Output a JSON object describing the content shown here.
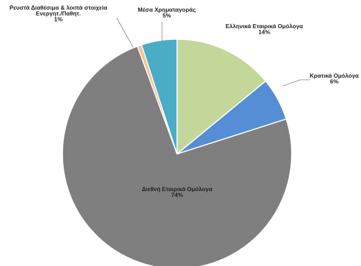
{
  "chart_data": {
    "type": "pie",
    "title": "",
    "start_angle_deg": 0,
    "direction": "clockwise",
    "slices": [
      {
        "label_lines": [
          "Ελληνικά Εταιρικά Ομόλογα",
          "14%"
        ],
        "value": 14,
        "color": "#c4d79b"
      },
      {
        "label_lines": [
          "Κρατικά Ομόλογα",
          "6%"
        ],
        "value": 6,
        "color": "#558ed5"
      },
      {
        "label_lines": [
          "Διεθνή Εταιρικά Ομόλογα",
          "74%"
        ],
        "value": 74,
        "color": "#7f7f7f"
      },
      {
        "label_lines": [
          "Ρευστά Διαθέσιμα & λοιπά στοιχεία",
          "Ενεργητ./Παθητ.",
          "1%"
        ],
        "value": 0.6,
        "color": "#fac090"
      },
      {
        "label_lines": [
          "Μέσα Χρηματαγοράς",
          "5%"
        ],
        "value": 5,
        "color": "#4bacc6"
      }
    ]
  }
}
